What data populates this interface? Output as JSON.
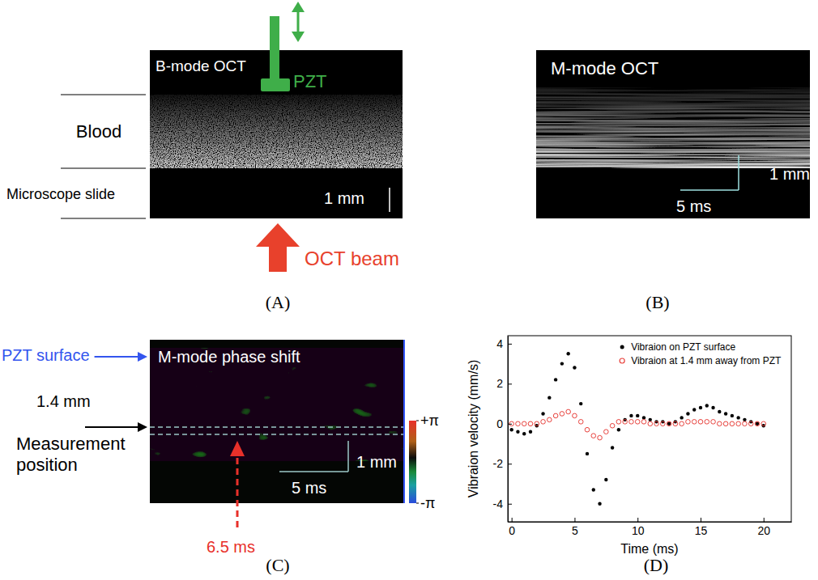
{
  "panels": {
    "A": {
      "letter": "(A)",
      "title": "B-mode OCT",
      "pzt": "PZT",
      "layers": [
        "Blood",
        "Microscope slide"
      ],
      "scale_bar": "1 mm",
      "beam": "OCT beam"
    },
    "B": {
      "letter": "(B)",
      "title": "M-mode OCT",
      "scale_bar_depth": "1 mm",
      "scale_bar_time": "5 ms"
    },
    "C": {
      "letter": "(C)",
      "title": "M-mode phase shift",
      "surface": "PZT surface",
      "distance": "1.4 mm",
      "measurement": "Measurement position",
      "scale_bar_depth": "1 mm",
      "scale_bar_time": "5 ms",
      "time_marker": "6.5 ms",
      "colorbar": {
        "range": [
          -3.14159,
          3.14159
        ],
        "ticks": [
          {
            "value": 3.14159,
            "label": "+π"
          },
          {
            "value": -3.14159,
            "label": "-π"
          }
        ]
      }
    },
    "D": {
      "letter": "(D)"
    }
  },
  "chart_data": {
    "type": "scatter",
    "xlabel": "Time (ms)",
    "ylabel": "Vibraion velocity (mm/s)",
    "x": [
      0,
      0.5,
      1,
      1.5,
      2,
      2.5,
      3,
      3.5,
      4,
      4.5,
      5,
      5.5,
      6,
      6.5,
      7,
      7.5,
      8,
      8.5,
      9,
      9.5,
      10,
      10.5,
      11,
      11.5,
      12,
      12.5,
      13,
      13.5,
      14,
      14.5,
      15,
      15.5,
      16,
      16.5,
      17,
      17.5,
      18,
      18.5,
      19,
      19.5,
      20
    ],
    "series": [
      {
        "name": "Vibraion on PZT surface",
        "color": "#000000",
        "marker": "circle",
        "values": [
          -0.3,
          -0.4,
          -0.5,
          -0.4,
          -0.1,
          0.5,
          1.3,
          2.2,
          3.0,
          3.5,
          2.8,
          1.0,
          -1.5,
          -3.3,
          -4.0,
          -2.8,
          -1.2,
          -0.3,
          0.2,
          0.4,
          0.4,
          0.3,
          0.2,
          0.1,
          0.1,
          0.0,
          0.1,
          0.3,
          0.5,
          0.7,
          0.8,
          0.9,
          0.8,
          0.6,
          0.5,
          0.4,
          0.3,
          0.2,
          0.1,
          0.0,
          -0.1
        ]
      },
      {
        "name": "Vibraion at 1.4 mm away from PZT",
        "color": "#e8413c",
        "marker": "open_circle",
        "values": [
          0,
          0,
          0,
          0,
          0,
          0.1,
          0.2,
          0.4,
          0.5,
          0.6,
          0.4,
          0.1,
          -0.3,
          -0.6,
          -0.7,
          -0.4,
          -0.1,
          0.1,
          0.1,
          0.1,
          0.1,
          0.1,
          0,
          0,
          0,
          0,
          0,
          0,
          0.1,
          0.1,
          0.1,
          0.1,
          0.1,
          0,
          0,
          0,
          0,
          0,
          0,
          0,
          0
        ]
      }
    ],
    "xlim": [
      -0.3,
      22.2
    ],
    "ylim": [
      -4.9,
      4.4
    ],
    "xticks": [
      0,
      5,
      10,
      15,
      20
    ],
    "yticks": [
      -4,
      -2,
      0,
      2,
      4
    ],
    "legend": "upper right"
  }
}
